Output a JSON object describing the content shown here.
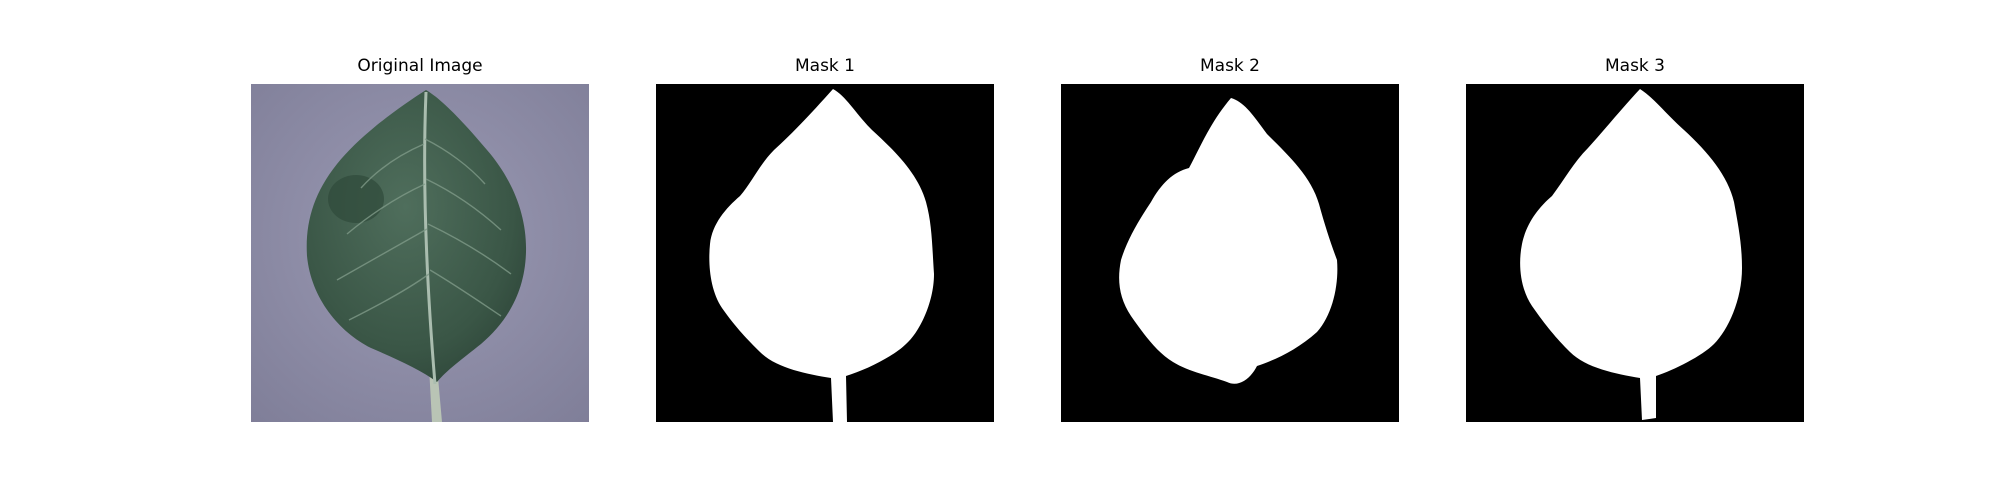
{
  "figure": {
    "panels": [
      {
        "title": "Original Image",
        "kind": "photo"
      },
      {
        "title": "Mask 1",
        "kind": "mask"
      },
      {
        "title": "Mask 2",
        "kind": "mask"
      },
      {
        "title": "Mask 3",
        "kind": "mask"
      }
    ],
    "colors": {
      "background": "#ffffff",
      "mask_background": "#000000",
      "mask_foreground": "#ffffff",
      "photo_backdrop": "#8f8ea8",
      "leaf_dark": "#34503f",
      "leaf_mid": "#4c6b58",
      "leaf_vein": "#a9bcae",
      "stem": "#b6c2b2"
    }
  }
}
